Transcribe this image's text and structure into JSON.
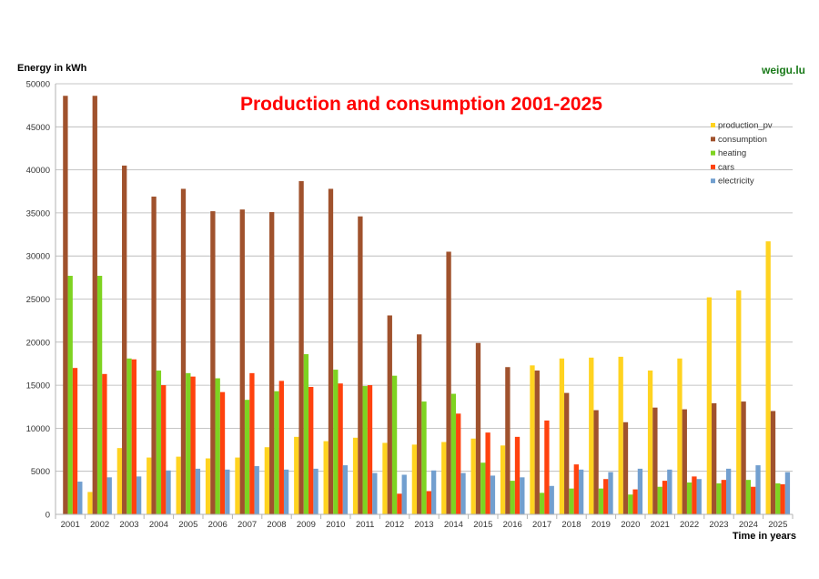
{
  "header": {
    "ylabel": "Energy in kWh",
    "brand": "weigu.lu",
    "xlabel": "Time in years"
  },
  "chart_data": {
    "type": "bar",
    "title": "Production and consumption 2001-2025",
    "xlabel": "Time in years",
    "ylabel": "Energy in kWh",
    "ylim": [
      0,
      50000
    ],
    "yticks": [
      0,
      5000,
      10000,
      15000,
      20000,
      25000,
      30000,
      35000,
      40000,
      45000,
      50000
    ],
    "grid": true,
    "legend_position": "top-right",
    "categories": [
      "2001",
      "2002",
      "2003",
      "2004",
      "2005",
      "2006",
      "2007",
      "2008",
      "2009",
      "2010",
      "2011",
      "2012",
      "2013",
      "2014",
      "2015",
      "2016",
      "2017",
      "2018",
      "2019",
      "2020",
      "2021",
      "2022",
      "2023",
      "2024",
      "2025"
    ],
    "series": [
      {
        "name": "production_pv",
        "color": "#ffd320",
        "values": [
          0,
          2600,
          7700,
          6600,
          6700,
          6500,
          6600,
          7800,
          9000,
          8500,
          8900,
          8300,
          8100,
          8400,
          8800,
          8000,
          17300,
          18100,
          18200,
          18300,
          16700,
          18100,
          25200,
          26000,
          31700
        ]
      },
      {
        "name": "consumption",
        "color": "#a0522d",
        "values": [
          48600,
          48600,
          40500,
          36900,
          37800,
          35200,
          35400,
          35100,
          38700,
          37800,
          34600,
          23100,
          20900,
          30500,
          19900,
          17100,
          16700,
          14100,
          12100,
          10700,
          12400,
          12200,
          12900,
          13100,
          12000
        ]
      },
      {
        "name": "heating",
        "color": "#7ed321",
        "values": [
          27700,
          27700,
          18100,
          16700,
          16400,
          15800,
          13300,
          14300,
          18600,
          16800,
          14900,
          16100,
          13100,
          14000,
          6000,
          3900,
          2500,
          3000,
          3000,
          2300,
          3200,
          3700,
          3600,
          4000,
          3600
        ]
      },
      {
        "name": "cars",
        "color": "#ff420e",
        "values": [
          17000,
          16300,
          18000,
          15000,
          16000,
          14200,
          16400,
          15500,
          14800,
          15200,
          15000,
          2400,
          2700,
          11700,
          9500,
          9000,
          10900,
          5800,
          4100,
          2900,
          3900,
          4400,
          4000,
          3200,
          3500
        ]
      },
      {
        "name": "electricity",
        "color": "#729fcf",
        "values": [
          3800,
          4300,
          4400,
          5100,
          5300,
          5200,
          5600,
          5200,
          5300,
          5700,
          4800,
          4600,
          5100,
          4800,
          4500,
          4300,
          3300,
          5200,
          4900,
          5300,
          5200,
          4100,
          5300,
          5700,
          4900
        ]
      }
    ]
  }
}
